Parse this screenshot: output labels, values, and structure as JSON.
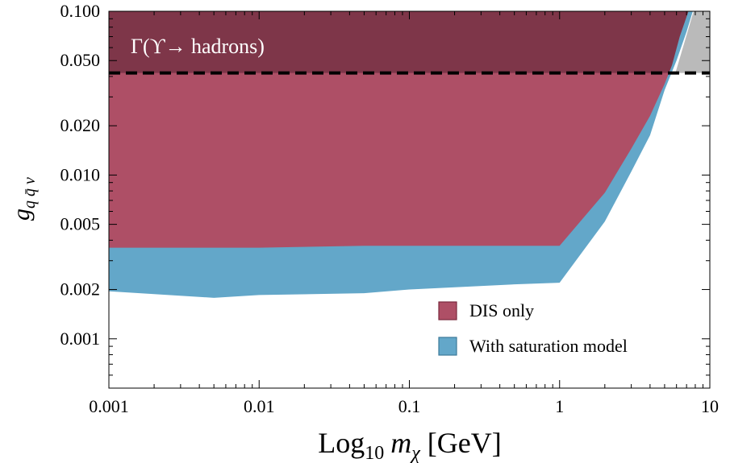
{
  "chart_data": {
    "type": "area",
    "x_scale": "log",
    "y_scale": "log",
    "xlim": [
      0.001,
      10
    ],
    "ylim": [
      0.0005,
      0.1
    ],
    "x_ticks": [
      {
        "value": 0.001,
        "label": "0.001"
      },
      {
        "value": 0.01,
        "label": "0.01"
      },
      {
        "value": 0.1,
        "label": "0.1"
      },
      {
        "value": 1,
        "label": "1"
      },
      {
        "value": 10,
        "label": "10"
      }
    ],
    "y_ticks": [
      {
        "value": 0.1,
        "label": "0.100"
      },
      {
        "value": 0.05,
        "label": "0.050"
      },
      {
        "value": 0.02,
        "label": "0.020"
      },
      {
        "value": 0.01,
        "label": "0.010"
      },
      {
        "value": 0.005,
        "label": "0.005"
      },
      {
        "value": 0.002,
        "label": "0.002"
      },
      {
        "value": 0.001,
        "label": "0.001"
      }
    ],
    "xlabel": {
      "main": "Log",
      "sub": "10",
      "var": "m",
      "varsub": "χ",
      "unit": " [GeV]"
    },
    "ylabel": {
      "main": "g",
      "sub": "q q̄ v"
    },
    "series": [
      {
        "name": "With saturation model",
        "color": "#63a7c9",
        "lower_boundary": [
          [
            0.001,
            0.00195
          ],
          [
            0.005,
            0.00178
          ],
          [
            0.01,
            0.00185
          ],
          [
            0.05,
            0.0019
          ],
          [
            0.1,
            0.002
          ],
          [
            0.5,
            0.00215
          ],
          [
            1,
            0.0022
          ],
          [
            2,
            0.0052
          ],
          [
            3,
            0.0105
          ],
          [
            4,
            0.0175
          ],
          [
            5,
            0.033
          ],
          [
            6,
            0.05
          ],
          [
            7,
            0.075
          ],
          [
            7.7,
            0.1
          ]
        ]
      },
      {
        "name": "DIS only",
        "color": "#ae4f66",
        "lower_boundary": [
          [
            0.001,
            0.0036
          ],
          [
            0.01,
            0.0036
          ],
          [
            0.05,
            0.0037
          ],
          [
            0.1,
            0.0037
          ],
          [
            0.5,
            0.0037
          ],
          [
            1,
            0.0037
          ],
          [
            2,
            0.0078
          ],
          [
            3,
            0.0145
          ],
          [
            4,
            0.023
          ],
          [
            5,
            0.036
          ],
          [
            5.6,
            0.047
          ],
          [
            6.3,
            0.07
          ],
          [
            7.2,
            0.1
          ]
        ]
      }
    ],
    "excluded_regions": [
      {
        "label": "Γ(ϒ→ hadrons)",
        "color": "#7e3649",
        "y_min": 0.042,
        "boundary_line": "dashed",
        "boundary_y": 0.042
      },
      {
        "label": "",
        "color": "#bababa",
        "x_min_boundary": [
          [
            5.9,
            0.042
          ],
          [
            7.8,
            0.1
          ]
        ]
      }
    ],
    "annotations": [
      {
        "text": "Γ(ϒ→ hadrons)"
      }
    ],
    "legend": {
      "placement": "bottom-right",
      "entries": [
        {
          "label": "DIS only",
          "color": "#ae4f66"
        },
        {
          "label": "With saturation model",
          "color": "#63a7c9"
        }
      ]
    }
  }
}
